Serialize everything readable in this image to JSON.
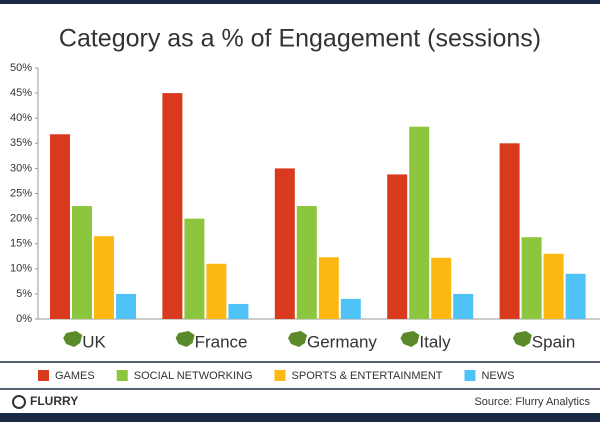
{
  "chart_data": {
    "type": "bar",
    "title": "Category as a % of Engagement (sessions)",
    "categories": [
      "UK",
      "France",
      "Germany",
      "Italy",
      "Spain"
    ],
    "series": [
      {
        "name": "GAMES",
        "color": "#d9391c",
        "values": [
          36.8,
          45,
          30,
          28.8,
          35
        ]
      },
      {
        "name": "SOCIAL NETWORKING",
        "color": "#8cc63f",
        "values": [
          22.5,
          20,
          22.5,
          38.3,
          16.3
        ]
      },
      {
        "name": "SPORTS & ENTERTAINMENT",
        "color": "#fdb813",
        "values": [
          16.5,
          11,
          12.3,
          12.2,
          13
        ]
      },
      {
        "name": "NEWS",
        "color": "#4fc3f7",
        "values": [
          5,
          3,
          4,
          5,
          9
        ]
      }
    ],
    "ylim": [
      0,
      50
    ],
    "yticks": [
      {
        "value": 0,
        "label": "0%"
      },
      {
        "value": 5,
        "label": "5%"
      },
      {
        "value": 10,
        "label": "10%"
      },
      {
        "value": 15,
        "label": "15%"
      },
      {
        "value": 20,
        "label": "20%"
      },
      {
        "value": 25,
        "label": "25%"
      },
      {
        "value": 30,
        "label": "30%"
      },
      {
        "value": 35,
        "label": "35%"
      },
      {
        "value": 40,
        "label": "40%"
      },
      {
        "value": 45,
        "label": "45%"
      },
      {
        "value": 50,
        "label": "50%"
      }
    ],
    "grid": false
  },
  "footer": {
    "logo": "FLURRY",
    "source": "Source: Flurry Analytics"
  }
}
